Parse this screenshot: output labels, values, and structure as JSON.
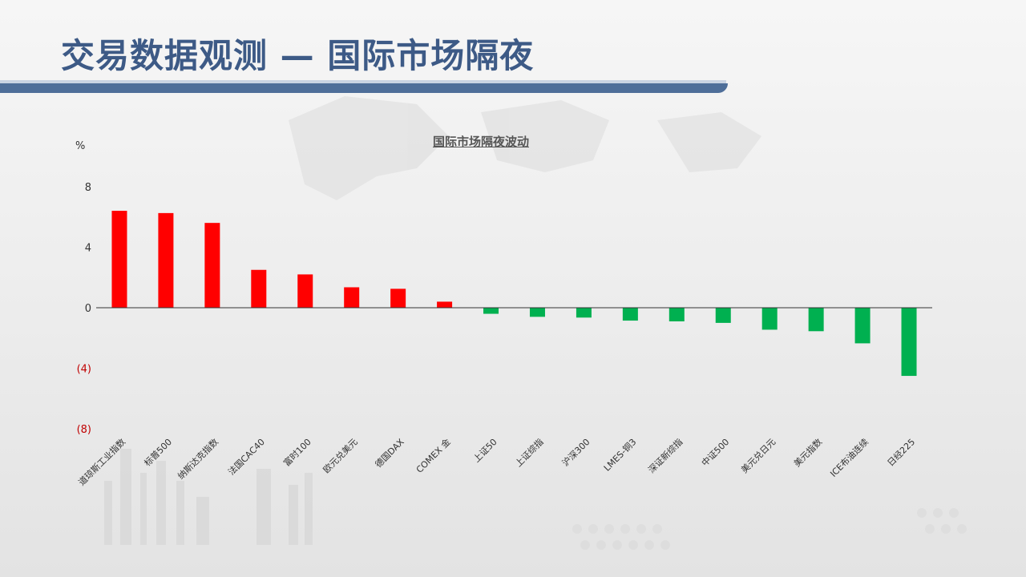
{
  "page": {
    "title": "交易数据观测 — 国际市场隔夜"
  },
  "colors": {
    "title": "#3d5a86",
    "positive": "#ff0000",
    "negative": "#00b050",
    "negative_tick": "#c00000"
  },
  "chart_data": {
    "type": "bar",
    "title": "国际市场隔夜波动",
    "ylabel": "%",
    "xlabel": "",
    "ylim": [
      -8,
      8
    ],
    "yticks": [
      8,
      4,
      0,
      -4,
      -8
    ],
    "ytick_labels": [
      "8",
      "4",
      "0",
      "(4)",
      "(8)"
    ],
    "grid": false,
    "categories": [
      "道琼斯工业指数",
      "标普500",
      "纳斯达克指数",
      "法国CAC40",
      "富时100",
      "欧元兑美元",
      "德国DAX",
      "COMEX 金",
      "上证50",
      "上证综指",
      "沪深300",
      "LMES-铜3",
      "深证新综指",
      "中证500",
      "美元兑日元",
      "美元指数",
      "ICE布油连续",
      "日经225"
    ],
    "values": [
      6.4,
      6.25,
      5.6,
      2.5,
      2.2,
      1.35,
      1.25,
      0.4,
      -0.4,
      -0.6,
      -0.65,
      -0.85,
      -0.9,
      -1.0,
      -1.45,
      -1.55,
      -2.35,
      -4.5
    ]
  }
}
